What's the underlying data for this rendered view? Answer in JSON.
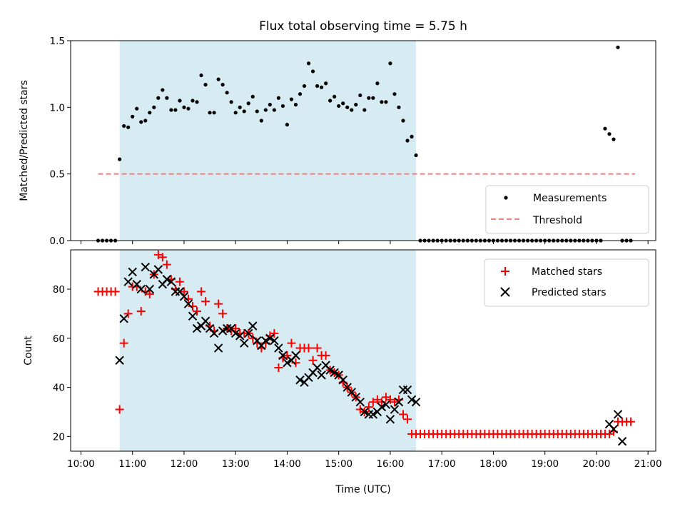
{
  "chart_data": [
    {
      "type": "scatter",
      "title": "Flux total observing time = 5.75 h",
      "xlabel": "",
      "ylabel": "Matched/Predicted stars",
      "ylim": [
        0,
        1.5
      ],
      "yticks": [
        "0.0",
        "0.5",
        "1.0",
        "1.5"
      ],
      "xlim_hours": [
        9.8,
        21.15
      ],
      "grid": false,
      "legend_position": "lower-right",
      "shaded_interval": {
        "start": "10:45",
        "end": "16:30",
        "color": "#add8e6"
      },
      "series": [
        {
          "name": "Measurements",
          "kind": "points",
          "color": "#000000",
          "x": [
            "10:20",
            "10:25",
            "10:30",
            "10:35",
            "10:40",
            "10:45",
            "10:50",
            "10:55",
            "11:00",
            "11:05",
            "11:10",
            "11:15",
            "11:20",
            "11:25",
            "11:30",
            "11:35",
            "11:40",
            "11:45",
            "11:50",
            "11:55",
            "12:00",
            "12:05",
            "12:10",
            "12:15",
            "12:20",
            "12:25",
            "12:30",
            "12:35",
            "12:40",
            "12:45",
            "12:50",
            "12:55",
            "13:00",
            "13:05",
            "13:10",
            "13:15",
            "13:20",
            "13:25",
            "13:30",
            "13:35",
            "13:40",
            "13:45",
            "13:50",
            "13:55",
            "14:00",
            "14:05",
            "14:10",
            "14:15",
            "14:20",
            "14:25",
            "14:30",
            "14:35",
            "14:40",
            "14:45",
            "14:50",
            "14:55",
            "15:00",
            "15:05",
            "15:10",
            "15:15",
            "15:20",
            "15:25",
            "15:30",
            "15:35",
            "15:40",
            "15:45",
            "15:50",
            "15:55",
            "16:00",
            "16:05",
            "16:10",
            "16:15",
            "16:20",
            "16:25",
            "16:30",
            "16:35",
            "16:40",
            "16:45",
            "16:50",
            "16:55",
            "17:00",
            "17:05",
            "17:10",
            "17:15",
            "17:20",
            "17:25",
            "17:30",
            "17:35",
            "17:40",
            "17:45",
            "17:50",
            "17:55",
            "18:00",
            "18:05",
            "18:10",
            "18:15",
            "18:20",
            "18:25",
            "18:30",
            "18:35",
            "18:40",
            "18:45",
            "18:50",
            "18:55",
            "19:00",
            "19:05",
            "19:10",
            "19:15",
            "19:20",
            "19:25",
            "19:30",
            "19:35",
            "19:40",
            "19:45",
            "19:50",
            "19:55",
            "20:00",
            "20:05",
            "20:10",
            "20:15",
            "20:20",
            "20:25",
            "20:30",
            "20:35",
            "20:40"
          ],
          "y": [
            0,
            0,
            0,
            0,
            0,
            0.61,
            0.86,
            0.85,
            0.93,
            0.99,
            0.89,
            0.9,
            0.96,
            1.0,
            1.07,
            1.13,
            1.07,
            0.98,
            0.98,
            1.05,
            1.0,
            0.99,
            1.05,
            1.04,
            1.24,
            1.17,
            0.96,
            0.96,
            1.21,
            1.17,
            1.11,
            1.04,
            0.96,
            1.0,
            0.97,
            1.03,
            1.08,
            0.97,
            0.9,
            0.98,
            1.02,
            0.98,
            1.07,
            1.01,
            0.87,
            1.06,
            1.02,
            1.1,
            1.16,
            1.33,
            1.27,
            1.16,
            1.15,
            1.18,
            1.05,
            1.08,
            1.01,
            1.03,
            1.0,
            0.98,
            1.02,
            1.09,
            0.98,
            1.07,
            1.07,
            1.18,
            1.04,
            1.04,
            1.33,
            1.1,
            1.0,
            0.9,
            0.75,
            0.78,
            0.64,
            0,
            0,
            0,
            0,
            0,
            0,
            0,
            0,
            0,
            0,
            0,
            0,
            0,
            0,
            0,
            0,
            0,
            0,
            0,
            0,
            0,
            0,
            0,
            0,
            0,
            0,
            0,
            0,
            0,
            0,
            0,
            0,
            0,
            0,
            0,
            0,
            0,
            0,
            0,
            0,
            0,
            0,
            0,
            0.84,
            0.8,
            0.76,
            1.45,
            0,
            0,
            0
          ]
        },
        {
          "name": "Threshold",
          "kind": "dashed-line",
          "color": "#f08080",
          "x": [
            "10:20",
            "20:45"
          ],
          "y": [
            0.5,
            0.5
          ]
        }
      ]
    },
    {
      "type": "scatter",
      "title": "",
      "xlabel": "Time (UTC)",
      "ylabel": "Count",
      "ylim": [
        14,
        96
      ],
      "yticks": [
        "20",
        "40",
        "60",
        "80"
      ],
      "xticks": [
        "10:00",
        "11:00",
        "12:00",
        "13:00",
        "14:00",
        "15:00",
        "16:00",
        "17:00",
        "18:00",
        "19:00",
        "20:00",
        "21:00"
      ],
      "xlim_hours": [
        9.8,
        21.15
      ],
      "grid": false,
      "legend_position": "upper-right",
      "shaded_interval": {
        "start": "10:45",
        "end": "16:30",
        "color": "#add8e6"
      },
      "series": [
        {
          "name": "Matched stars",
          "kind": "plus",
          "color": "#ff0000",
          "x": [
            "10:20",
            "10:25",
            "10:30",
            "10:35",
            "10:40",
            "10:45",
            "10:50",
            "10:55",
            "11:00",
            "11:05",
            "11:10",
            "11:15",
            "11:20",
            "11:25",
            "11:30",
            "11:35",
            "11:40",
            "11:45",
            "11:50",
            "11:55",
            "12:00",
            "12:05",
            "12:10",
            "12:15",
            "12:20",
            "12:25",
            "12:30",
            "12:35",
            "12:40",
            "12:45",
            "12:50",
            "12:55",
            "13:00",
            "13:05",
            "13:10",
            "13:15",
            "13:20",
            "13:25",
            "13:30",
            "13:35",
            "13:40",
            "13:45",
            "13:50",
            "13:55",
            "14:00",
            "14:05",
            "14:10",
            "14:15",
            "14:20",
            "14:25",
            "14:30",
            "14:35",
            "14:40",
            "14:45",
            "14:50",
            "14:55",
            "15:00",
            "15:05",
            "15:10",
            "15:15",
            "15:20",
            "15:25",
            "15:30",
            "15:35",
            "15:40",
            "15:45",
            "15:50",
            "15:55",
            "16:00",
            "16:05",
            "16:10",
            "16:15",
            "16:20",
            "16:25",
            "16:30",
            "16:35",
            "16:40",
            "16:45",
            "16:50",
            "16:55",
            "17:00",
            "17:05",
            "17:10",
            "17:15",
            "17:20",
            "17:25",
            "17:30",
            "17:35",
            "17:40",
            "17:45",
            "17:50",
            "17:55",
            "18:00",
            "18:05",
            "18:10",
            "18:15",
            "18:20",
            "18:25",
            "18:30",
            "18:35",
            "18:40",
            "18:45",
            "18:50",
            "18:55",
            "19:00",
            "19:05",
            "19:10",
            "19:15",
            "19:20",
            "19:25",
            "19:30",
            "19:35",
            "19:40",
            "19:45",
            "19:50",
            "19:55",
            "20:00",
            "20:05",
            "20:10",
            "20:15",
            "20:20",
            "20:25",
            "20:30",
            "20:35",
            "20:40"
          ],
          "y": [
            79,
            79,
            79,
            79,
            79,
            31,
            58,
            70,
            81,
            81,
            71,
            79,
            78,
            86,
            94,
            93,
            90,
            84,
            80,
            83,
            79,
            76,
            73,
            71,
            79,
            75,
            65,
            63,
            74,
            70,
            64,
            63,
            64,
            62,
            62,
            62,
            60,
            58,
            56,
            58,
            61,
            62,
            48,
            52,
            53,
            58,
            50,
            56,
            56,
            56,
            51,
            56,
            53,
            53,
            47,
            46,
            45,
            42,
            40,
            38,
            36,
            31,
            30,
            32,
            34,
            35,
            34,
            36,
            35,
            34,
            35,
            29,
            27,
            21,
            21,
            21,
            21,
            21,
            21,
            21,
            21,
            21,
            21,
            21,
            21,
            21,
            21,
            21,
            21,
            21,
            21,
            21,
            21,
            21,
            21,
            21,
            21,
            21,
            21,
            21,
            21,
            21,
            21,
            21,
            21,
            21,
            21,
            21,
            21,
            21,
            21,
            21,
            21,
            21,
            21,
            21,
            21,
            21,
            21,
            21,
            22,
            26,
            26,
            26,
            26
          ]
        },
        {
          "name": "Predicted stars",
          "kind": "cross",
          "color": "#000000",
          "x": [
            "10:45",
            "10:50",
            "10:55",
            "11:00",
            "11:05",
            "11:10",
            "11:15",
            "11:20",
            "11:25",
            "11:30",
            "11:35",
            "11:40",
            "11:45",
            "11:50",
            "11:55",
            "12:00",
            "12:05",
            "12:10",
            "12:15",
            "12:20",
            "12:25",
            "12:30",
            "12:35",
            "12:40",
            "12:45",
            "12:50",
            "12:55",
            "13:00",
            "13:05",
            "13:10",
            "13:15",
            "13:20",
            "13:25",
            "13:30",
            "13:35",
            "13:40",
            "13:45",
            "13:50",
            "13:55",
            "14:00",
            "14:05",
            "14:10",
            "14:15",
            "14:20",
            "14:25",
            "14:30",
            "14:35",
            "14:40",
            "14:45",
            "14:50",
            "14:55",
            "15:00",
            "15:05",
            "15:10",
            "15:15",
            "15:20",
            "15:25",
            "15:30",
            "15:35",
            "15:40",
            "15:45",
            "15:50",
            "15:55",
            "16:00",
            "16:05",
            "16:10",
            "16:15",
            "16:20",
            "16:25",
            "16:30",
            "20:15",
            "20:20",
            "20:25",
            "20:30"
          ],
          "y": [
            51,
            68,
            83,
            87,
            82,
            80,
            89,
            80,
            86,
            88,
            82,
            84,
            83,
            79,
            79,
            77,
            74,
            69,
            64,
            65,
            67,
            64,
            62,
            56,
            63,
            64,
            64,
            62,
            61,
            58,
            62,
            65,
            59,
            57,
            59,
            60,
            59,
            56,
            53,
            50,
            51,
            53,
            43,
            42,
            44,
            46,
            48,
            45,
            49,
            47,
            46,
            45,
            43,
            40,
            38,
            36,
            34,
            30,
            29,
            29,
            30,
            32,
            33,
            27,
            31,
            34,
            39,
            39,
            35,
            34,
            25,
            23,
            29,
            18
          ]
        }
      ]
    }
  ]
}
